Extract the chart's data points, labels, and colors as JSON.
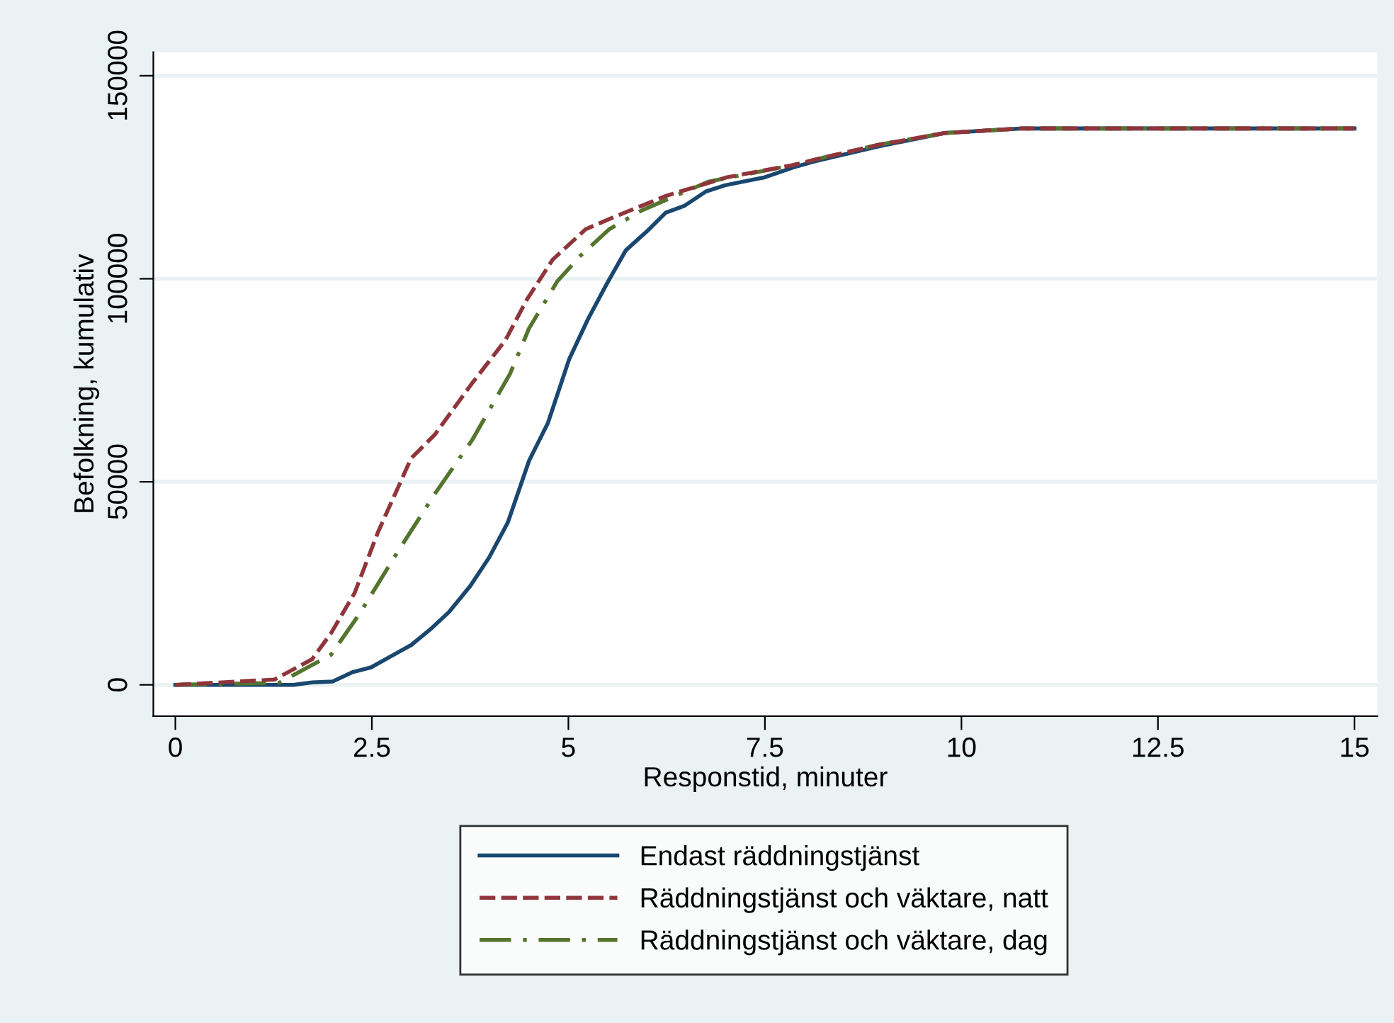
{
  "chart_data": {
    "type": "line",
    "xlabel": "Responstid, minuter",
    "ylabel": "Befolkning, kumulativ",
    "xlim": [
      -0.28,
      15.29
    ],
    "ylim": [
      -7700,
      155800
    ],
    "xticks": [
      0,
      2.5,
      5,
      7.5,
      10,
      12.5,
      15
    ],
    "yticks": [
      0,
      50000,
      100000,
      150000
    ],
    "grid": "y",
    "legend": "bottom",
    "marker": "none",
    "series": [
      {
        "name": "Endast räddningstjänst",
        "color": "#1a476f",
        "line_style": "solid",
        "x": [
          0,
          1.5,
          1.74,
          2.0,
          2.25,
          2.49,
          2.73,
          3.0,
          3.24,
          3.48,
          3.75,
          3.99,
          4.23,
          4.5,
          4.74,
          5.01,
          5.25,
          5.49,
          5.73,
          6.0,
          6.24,
          6.48,
          6.75,
          6.99,
          7.5,
          7.86,
          8.17,
          8.95,
          9.79,
          10.75,
          15
        ],
        "values": [
          0,
          0,
          600,
          800,
          3100,
          4300,
          6900,
          9800,
          13600,
          17900,
          24300,
          31300,
          40000,
          55200,
          64500,
          80200,
          90100,
          98800,
          107000,
          111700,
          116300,
          118000,
          121500,
          123000,
          125000,
          127400,
          129100,
          132600,
          135900,
          137000,
          137000
        ]
      },
      {
        "name": "Räddningstjänst och väktare, natt",
        "color": "#90353b",
        "line_style": "dashed",
        "x": [
          0,
          1.26,
          1.74,
          1.98,
          2.28,
          2.58,
          3.0,
          3.3,
          3.78,
          4.2,
          4.47,
          4.8,
          5.22,
          5.58,
          6.24,
          7.02,
          7.86,
          8.17,
          8.95,
          9.79,
          10.75,
          15
        ],
        "values": [
          0,
          1300,
          6300,
          12700,
          22600,
          37700,
          55800,
          61600,
          74400,
          84900,
          94800,
          104700,
          112200,
          115200,
          120400,
          125000,
          128000,
          129500,
          133000,
          135900,
          137000,
          137000
        ]
      },
      {
        "name": "Räddningstjänst och väktare, dag",
        "color": "#55752f",
        "line_style": "dashdot",
        "x": [
          0,
          1.32,
          1.98,
          2.34,
          2.82,
          3.3,
          3.78,
          4.26,
          4.5,
          4.86,
          5.16,
          5.52,
          5.94,
          6.78,
          7.86,
          8.17,
          8.95,
          9.79,
          10.75,
          15
        ],
        "values": [
          0,
          500,
          7400,
          17400,
          32500,
          47000,
          60400,
          76700,
          87800,
          99400,
          105800,
          112200,
          116900,
          123900,
          128000,
          129500,
          133000,
          135900,
          137000,
          137000
        ]
      }
    ]
  }
}
